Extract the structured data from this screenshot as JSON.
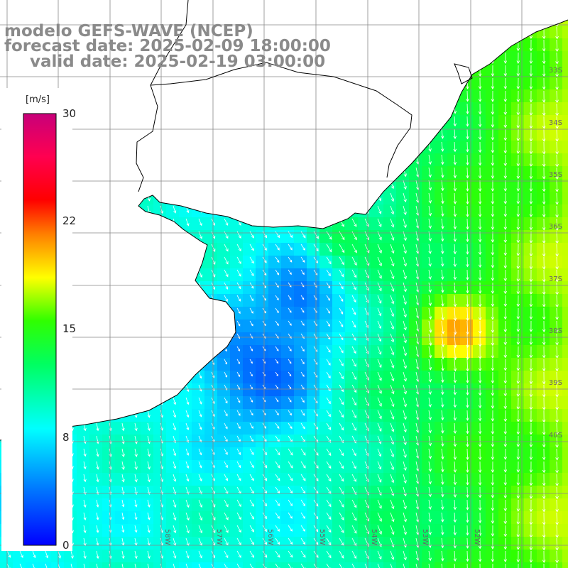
{
  "title": {
    "line1": "modelo GEFS-WAVE (NCEP)",
    "line2": "forecast date: 2025-02-09 18:00:00",
    "line3": "valid date: 2025-02-19 03:00:00"
  },
  "colorbar": {
    "unit": "[m/s]",
    "min": 0,
    "max": 30,
    "ticks": [
      "30",
      "22",
      "15",
      "8",
      "0"
    ],
    "stops": [
      "#0000ff",
      "#00b4ff",
      "#00ffff",
      "#00ff40",
      "#30ff00",
      "#ffff00",
      "#ff8000",
      "#ff0000",
      "#ff0060",
      "#c8007a"
    ]
  },
  "map": {
    "variable": "wind speed",
    "latitude_labels": [
      "33S",
      "34S",
      "35S",
      "36S",
      "37S",
      "38S",
      "39S",
      "40S"
    ],
    "longitude_labels": [
      "58W",
      "57W",
      "56W",
      "55W",
      "54W",
      "53W",
      "52W"
    ],
    "land_color": "#ffffff",
    "grid_color": "#888888",
    "arrow_color": "#ffffff",
    "coastline_color": "#000000"
  }
}
